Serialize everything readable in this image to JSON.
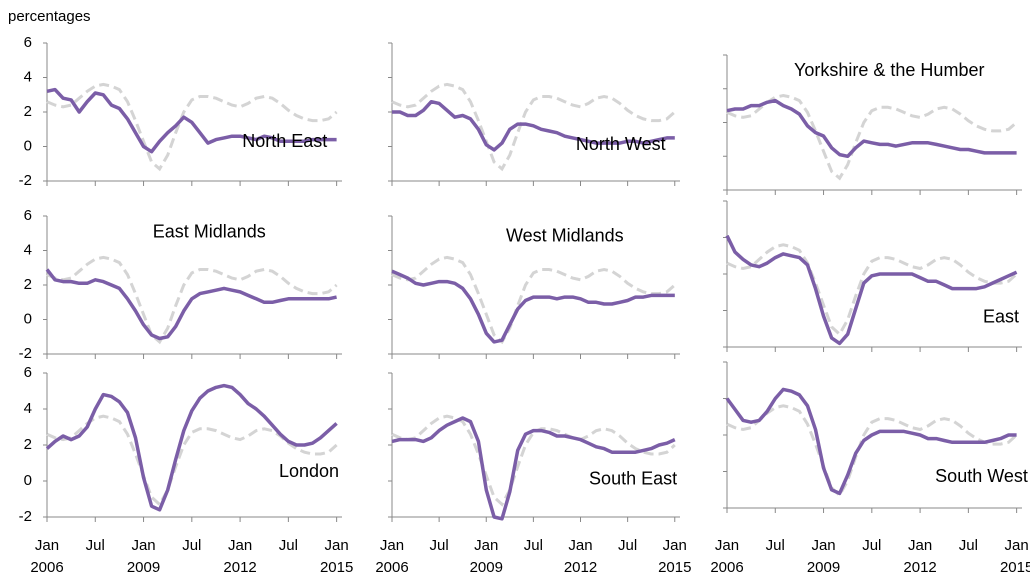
{
  "chart_data": {
    "type": "line",
    "y_axis_label": "percentages",
    "x": [
      "2006-01",
      "2006-04",
      "2006-07",
      "2006-10",
      "2007-01",
      "2007-04",
      "2007-07",
      "2007-10",
      "2008-01",
      "2008-04",
      "2008-07",
      "2008-10",
      "2009-01",
      "2009-04",
      "2009-07",
      "2009-10",
      "2010-01",
      "2010-04",
      "2010-07",
      "2010-10",
      "2011-01",
      "2011-04",
      "2011-07",
      "2011-10",
      "2012-01",
      "2012-04",
      "2012-07",
      "2012-10",
      "2013-01",
      "2013-04",
      "2013-07",
      "2013-10",
      "2014-01",
      "2014-04",
      "2014-07",
      "2014-10",
      "2015-01"
    ],
    "xlim": [
      "2006-01",
      "2015-03"
    ],
    "xticks": [
      {
        "value": "2006-01",
        "label": "Jan"
      },
      {
        "value": "2007-07",
        "label": "Jul"
      },
      {
        "value": "2009-01",
        "label": "Jan"
      },
      {
        "value": "2010-07",
        "label": "Jul"
      },
      {
        "value": "2012-01",
        "label": "Jan"
      },
      {
        "value": "2013-07",
        "label": "Jul"
      },
      {
        "value": "2015-01",
        "label": "Jan"
      }
    ],
    "xtick_years": [
      {
        "value": "2006-01",
        "label": "2006"
      },
      {
        "value": "2009-01",
        "label": "2009"
      },
      {
        "value": "2012-01",
        "label": "2012"
      },
      {
        "value": "2015-01",
        "label": "2015"
      }
    ],
    "ylim": [
      -2,
      6
    ],
    "yticks": [
      -2,
      0,
      2,
      4,
      6
    ],
    "reference": {
      "color": "#d4d4d4",
      "dashed": true,
      "values": [
        2.6,
        2.4,
        2.3,
        2.4,
        2.8,
        3.2,
        3.5,
        3.6,
        3.5,
        3.3,
        2.6,
        1.5,
        0.3,
        -0.9,
        -1.3,
        -0.5,
        0.8,
        2.0,
        2.7,
        2.9,
        2.9,
        2.8,
        2.6,
        2.4,
        2.3,
        2.5,
        2.8,
        2.9,
        2.8,
        2.5,
        2.1,
        1.8,
        1.6,
        1.5,
        1.5,
        1.6,
        2.0
      ]
    },
    "panels": [
      {
        "title": "North East",
        "series": [
          {
            "color": "#7b5ea7",
            "values": [
              3.2,
              3.3,
              2.8,
              2.7,
              2.0,
              2.6,
              3.1,
              3.0,
              2.4,
              2.2,
              1.6,
              0.8,
              0.0,
              -0.3,
              0.3,
              0.8,
              1.2,
              1.7,
              1.4,
              0.8,
              0.2,
              0.4,
              0.5,
              0.6,
              0.6,
              0.5,
              0.4,
              0.6,
              0.5,
              0.3,
              0.3,
              0.3,
              0.3,
              0.4,
              0.4,
              0.4,
              0.4
            ]
          }
        ]
      },
      {
        "title": "North West",
        "series": [
          {
            "color": "#7b5ea7",
            "values": [
              2.0,
              2.0,
              1.8,
              1.8,
              2.1,
              2.6,
              2.5,
              2.1,
              1.7,
              1.8,
              1.6,
              1.0,
              0.1,
              -0.2,
              0.2,
              1.0,
              1.3,
              1.3,
              1.2,
              1.0,
              0.9,
              0.8,
              0.6,
              0.5,
              0.4,
              0.3,
              0.2,
              0.2,
              0.2,
              0.2,
              0.3,
              0.3,
              0.2,
              0.3,
              0.4,
              0.5,
              0.5
            ]
          }
        ]
      },
      {
        "title": "Yorkshire & the Humber",
        "series": [
          {
            "color": "#7b5ea7",
            "values": [
              2.7,
              2.8,
              2.8,
              3.0,
              3.0,
              3.2,
              3.3,
              3.0,
              2.8,
              2.5,
              1.8,
              1.4,
              1.2,
              0.5,
              0.1,
              0.0,
              0.5,
              0.9,
              0.8,
              0.7,
              0.7,
              0.6,
              0.7,
              0.8,
              0.8,
              0.8,
              0.7,
              0.6,
              0.5,
              0.4,
              0.4,
              0.3,
              0.2,
              0.2,
              0.2,
              0.2,
              0.2
            ]
          }
        ]
      },
      {
        "title": "East Midlands",
        "series": [
          {
            "color": "#7b5ea7",
            "values": [
              2.9,
              2.3,
              2.2,
              2.2,
              2.1,
              2.1,
              2.3,
              2.2,
              2.0,
              1.8,
              1.2,
              0.5,
              -0.3,
              -0.9,
              -1.1,
              -1.0,
              -0.4,
              0.5,
              1.2,
              1.5,
              1.6,
              1.7,
              1.8,
              1.7,
              1.6,
              1.4,
              1.2,
              1.0,
              1.0,
              1.1,
              1.2,
              1.2,
              1.2,
              1.2,
              1.2,
              1.2,
              1.3
            ]
          }
        ]
      },
      {
        "title": "West Midlands",
        "series": [
          {
            "color": "#7b5ea7",
            "values": [
              2.8,
              2.6,
              2.4,
              2.1,
              2.0,
              2.1,
              2.2,
              2.2,
              2.1,
              1.8,
              1.2,
              0.3,
              -0.8,
              -1.3,
              -1.2,
              -0.3,
              0.6,
              1.1,
              1.3,
              1.3,
              1.3,
              1.2,
              1.3,
              1.3,
              1.2,
              1.0,
              1.0,
              0.9,
              0.9,
              1.0,
              1.1,
              1.3,
              1.3,
              1.4,
              1.4,
              1.4,
              1.4
            ]
          }
        ]
      },
      {
        "title": "East",
        "series": [
          {
            "color": "#7b5ea7",
            "values": [
              4.1,
              3.2,
              2.8,
              2.5,
              2.4,
              2.6,
              2.9,
              3.1,
              3.0,
              2.9,
              2.5,
              1.2,
              -0.3,
              -1.5,
              -1.8,
              -1.3,
              0.1,
              1.5,
              1.9,
              2.0,
              2.0,
              2.0,
              2.0,
              2.0,
              1.8,
              1.6,
              1.6,
              1.4,
              1.2,
              1.2,
              1.2,
              1.2,
              1.3,
              1.5,
              1.7,
              1.9,
              2.1
            ]
          }
        ]
      },
      {
        "title": "London",
        "series": [
          {
            "color": "#7b5ea7",
            "values": [
              1.8,
              2.2,
              2.5,
              2.3,
              2.5,
              3.0,
              4.0,
              4.8,
              4.7,
              4.4,
              3.8,
              2.4,
              0.2,
              -1.4,
              -1.6,
              -0.5,
              1.2,
              2.8,
              3.9,
              4.6,
              5.0,
              5.2,
              5.3,
              5.2,
              4.8,
              4.3,
              4.0,
              3.6,
              3.1,
              2.6,
              2.2,
              2.0,
              2.0,
              2.1,
              2.4,
              2.8,
              3.2
            ]
          }
        ]
      },
      {
        "title": "South East",
        "series": [
          {
            "color": "#7b5ea7",
            "values": [
              2.2,
              2.3,
              2.3,
              2.3,
              2.2,
              2.4,
              2.8,
              3.1,
              3.3,
              3.5,
              3.3,
              2.2,
              -0.5,
              -2.0,
              -2.1,
              -0.6,
              1.7,
              2.6,
              2.8,
              2.8,
              2.7,
              2.5,
              2.5,
              2.4,
              2.3,
              2.1,
              1.9,
              1.8,
              1.6,
              1.6,
              1.6,
              1.6,
              1.7,
              1.8,
              2.0,
              2.1,
              2.3
            ]
          }
        ]
      },
      {
        "title": "South West",
        "series": [
          {
            "color": "#7b5ea7",
            "values": [
              4.0,
              3.4,
              2.8,
              2.7,
              2.8,
              3.3,
              4.0,
              4.5,
              4.4,
              4.2,
              3.6,
              2.3,
              0.2,
              -1.0,
              -1.2,
              -0.2,
              1.0,
              1.7,
              2.0,
              2.2,
              2.2,
              2.2,
              2.2,
              2.1,
              2.0,
              1.8,
              1.8,
              1.7,
              1.6,
              1.6,
              1.6,
              1.6,
              1.6,
              1.7,
              1.8,
              2.0,
              2.0
            ]
          }
        ]
      }
    ]
  }
}
